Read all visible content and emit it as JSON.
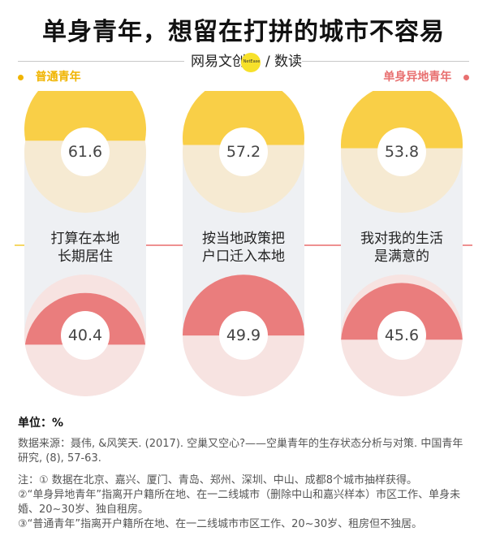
{
  "title": "单身青年，想留在打拼的城市不容易",
  "brand": {
    "name": "网易文创",
    "tag": "NetEase",
    "slash": "/",
    "column": "数读",
    "dot_color": "#f7e12b"
  },
  "legend": {
    "left": "普通青年",
    "right": "单身异地青年"
  },
  "colors": {
    "yellow": "#f9cf47",
    "yellow_light": "#f6ead2",
    "red": "#ea7d7d",
    "red_light": "#f7e3e1",
    "column_bg": "#eef0f3",
    "divider_yellow": "#f6d765",
    "divider_red": "#ee9191"
  },
  "chart_data": {
    "type": "pie",
    "unit": "%",
    "categories": [
      "打算在本地长期居住",
      "按当地政策把户口迁入本地",
      "我对我的生活是满意的"
    ],
    "series": [
      {
        "name": "普通青年",
        "values": [
          61.6,
          57.2,
          53.8
        ]
      },
      {
        "name": "单身异地青年",
        "values": [
          40.4,
          49.9,
          45.6
        ]
      }
    ]
  },
  "labels": [
    {
      "line1": "打算在本地",
      "line2": "长期居住"
    },
    {
      "line1": "按当地政策把",
      "line2": "户口迁入本地"
    },
    {
      "line1": "我对我的生活",
      "line2": "是满意的"
    }
  ],
  "unit_text": "单位：%",
  "source_text": "数据来源：聂伟, &风笑天. (2017). 空巢又空心?——空巢青年的生存状态分析与对策. 中国青年研究, (8), 57-63.",
  "notes": [
    "注：① 数据在北京、嘉兴、厦门、青岛、郑州、深圳、中山、成都8个城市抽样获得。",
    "②“单身异地青年”指离开户籍所在地、在一二线城市（删除中山和嘉兴样本）市区工作、单身未婚、20~30岁、独自租房。",
    "③“普通青年”指离开户籍所在地、在一二线城市市区工作、20~30岁、租房但不独居。"
  ]
}
